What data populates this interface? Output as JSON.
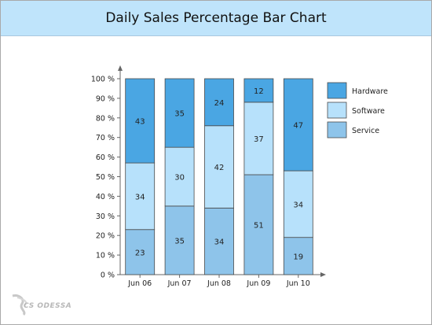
{
  "colors": {
    "hardware": "#4aa6e3",
    "software": "#b7e1fb",
    "service": "#8ec4ea",
    "title_bg": "#bfe4fb"
  },
  "brand": {
    "logo_text": "CS ODESSA"
  },
  "chart_data": {
    "type": "bar",
    "stacked": true,
    "title": "Daily Sales Percentage Bar Chart",
    "xlabel": "",
    "ylabel": "",
    "ylim": [
      0,
      100
    ],
    "y_ticks": [
      "0 %",
      "10 %",
      "20 %",
      "30 %",
      "40 %",
      "50 %",
      "60 %",
      "70 %",
      "80 %",
      "90 %",
      "100 %"
    ],
    "categories": [
      "Jun 06",
      "Jun 07",
      "Jun 08",
      "Jun 09",
      "Jun 10"
    ],
    "series": [
      {
        "name": "Service",
        "color": "#8ec4ea",
        "values": [
          23,
          35,
          34,
          51,
          19
        ]
      },
      {
        "name": "Software",
        "color": "#b7e1fb",
        "values": [
          34,
          30,
          42,
          37,
          34
        ]
      },
      {
        "name": "Hardware",
        "color": "#4aa6e3",
        "values": [
          43,
          35,
          24,
          12,
          47
        ]
      }
    ],
    "legend": {
      "placement": "right",
      "entries": [
        "Hardware",
        "Software",
        "Service"
      ]
    },
    "grid": false
  }
}
